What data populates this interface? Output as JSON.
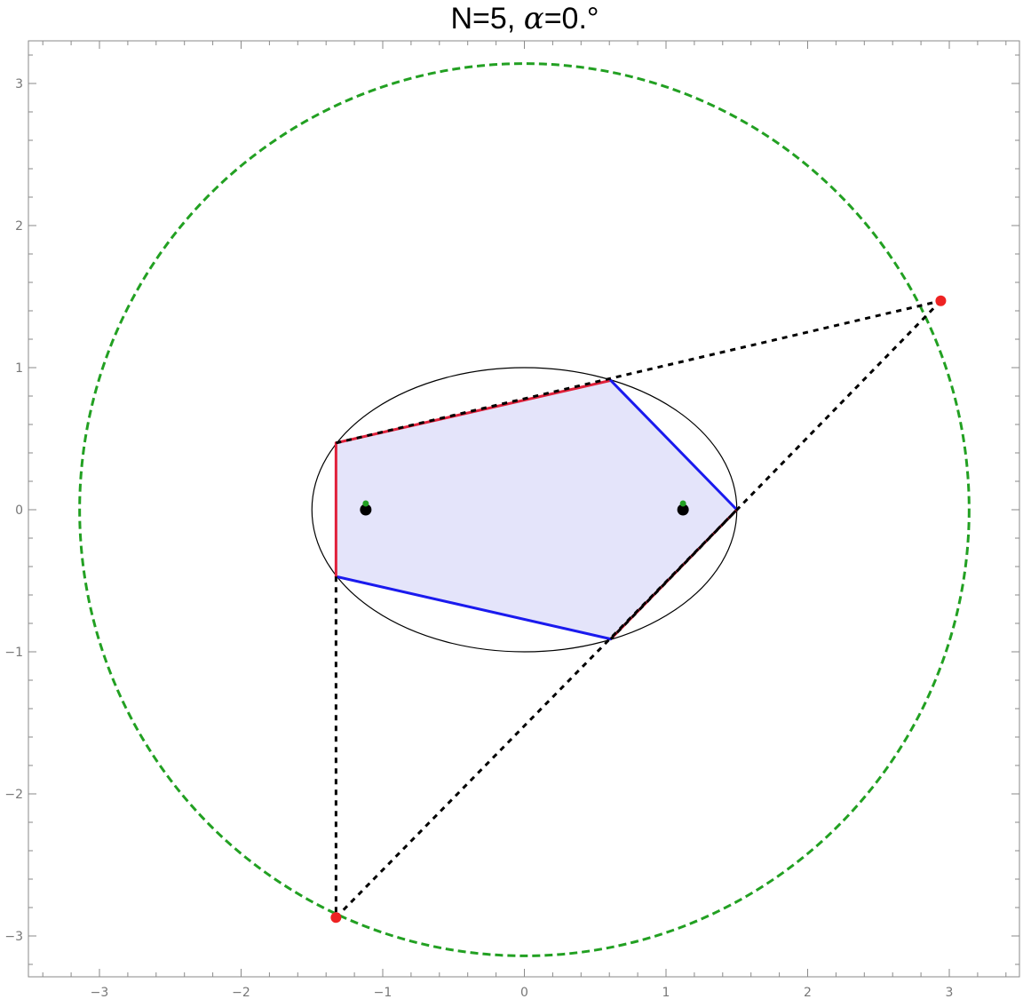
{
  "title": {
    "prefix": "N=5, ",
    "symbol": "α",
    "suffix": "=0.°"
  },
  "chart_data": {
    "type": "diagram",
    "xlim": [
      -3.5,
      3.5
    ],
    "ylim": [
      -3.3,
      3.3
    ],
    "x_ticks": [
      -3,
      -2,
      -1,
      0,
      1,
      2,
      3
    ],
    "y_ticks": [
      -3,
      -2,
      -1,
      0,
      1,
      2,
      3
    ],
    "x_tick_labels": [
      "−3",
      "−2",
      "−1",
      "0",
      "1",
      "2",
      "3"
    ],
    "y_tick_labels": [
      "−3",
      "−2",
      "−1",
      "0",
      "1",
      "2",
      "3"
    ],
    "outer_circle": {
      "center": [
        0,
        0
      ],
      "radius": 3.14,
      "color": "#22a022",
      "style": "dashed"
    },
    "ellipse": {
      "center": [
        0,
        0
      ],
      "a": 1.5,
      "b": 1.0,
      "color": "#000000"
    },
    "polygon": {
      "vertices": [
        [
          -1.33,
          0.47
        ],
        [
          0.61,
          0.91
        ],
        [
          1.5,
          0.0
        ],
        [
          0.61,
          -0.91
        ],
        [
          -1.33,
          -0.47
        ]
      ],
      "fill": "#e4e4fa",
      "edge_colors": [
        "#e0203a",
        "#1a1aee",
        "#e0203a",
        "#1a1aee",
        "#e0203a"
      ]
    },
    "foci": [
      [
        -1.12,
        0.0
      ],
      [
        1.12,
        0.0
      ]
    ],
    "focus_marker_color": "#000000",
    "focus_dot_color": "#22a022",
    "outer_points": [
      [
        2.94,
        1.47
      ],
      [
        -1.33,
        -2.87
      ]
    ],
    "outer_point_color": "#ee2222",
    "dashed_lines": [
      [
        [
          -1.33,
          0.47
        ],
        [
          2.94,
          1.47
        ]
      ],
      [
        [
          2.94,
          1.47
        ],
        [
          0.61,
          -0.91
        ]
      ],
      [
        [
          -1.33,
          -0.47
        ],
        [
          -1.33,
          -2.87
        ]
      ],
      [
        [
          -1.33,
          -2.87
        ],
        [
          1.5,
          0.0
        ]
      ]
    ],
    "dashed_line_color": "#000000"
  }
}
